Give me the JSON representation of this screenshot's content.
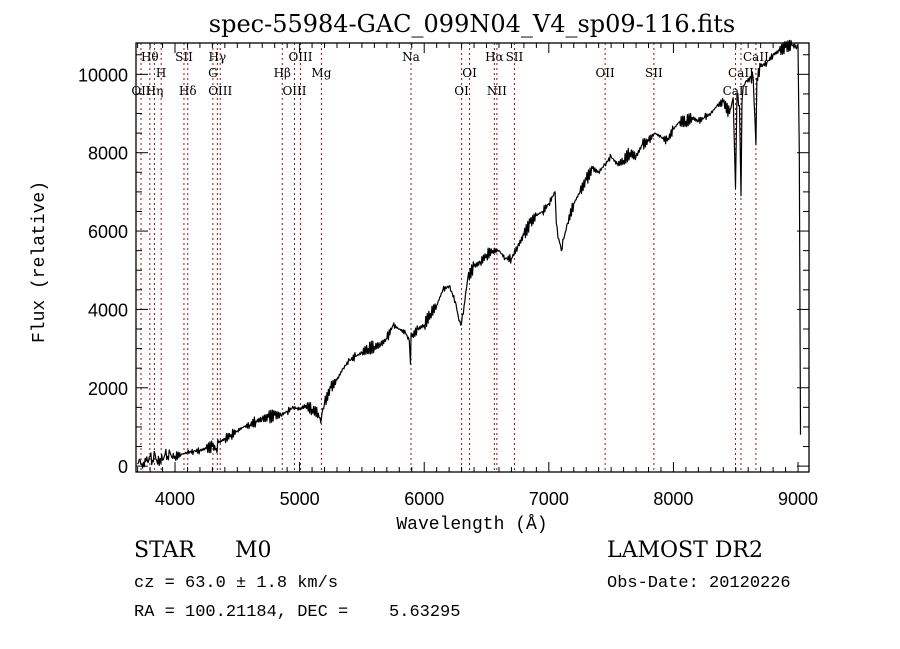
{
  "chart_data": {
    "type": "line",
    "title": "spec-55984-GAC_099N04_V4_sp09-116.fits",
    "xlabel": "Wavelength (Å)",
    "ylabel": "Flux (relative)",
    "xlim": [
      3687,
      9088
    ],
    "ylim": [
      -150,
      10800
    ],
    "xticks": [
      4000,
      5000,
      6000,
      7000,
      8000,
      9000
    ],
    "xtick_labels": [
      "4000",
      "5000",
      "6000",
      "7000",
      "8000",
      "9000"
    ],
    "yticks": [
      0,
      2000,
      4000,
      6000,
      8000,
      10000
    ],
    "ytick_labels": [
      "0",
      "2000",
      "4000",
      "6000",
      "8000",
      "10000"
    ],
    "grid": false,
    "line_color": "#000000",
    "marker_line_color": "#8b1a1a",
    "series": [
      {
        "name": "flux",
        "x": [
          3700,
          3720,
          3740,
          3760,
          3780,
          3800,
          3820,
          3840,
          3860,
          3880,
          3900,
          3920,
          3940,
          3960,
          3980,
          4000,
          4050,
          4100,
          4150,
          4200,
          4250,
          4300,
          4330,
          4350,
          4400,
          4450,
          4500,
          4550,
          4600,
          4650,
          4700,
          4750,
          4800,
          4850,
          4900,
          4950,
          5000,
          5050,
          5100,
          5150,
          5170,
          5180,
          5200,
          5250,
          5300,
          5350,
          5400,
          5450,
          5500,
          5550,
          5600,
          5650,
          5700,
          5750,
          5800,
          5850,
          5880,
          5890,
          5895,
          5900,
          5950,
          6000,
          6050,
          6100,
          6150,
          6200,
          6250,
          6280,
          6300,
          6320,
          6350,
          6400,
          6450,
          6500,
          6550,
          6600,
          6650,
          6700,
          6750,
          6800,
          6850,
          6900,
          6950,
          7000,
          7050,
          7060,
          7080,
          7100,
          7120,
          7150,
          7200,
          7250,
          7300,
          7350,
          7400,
          7450,
          7500,
          7550,
          7600,
          7650,
          7700,
          7750,
          7800,
          7850,
          7900,
          7950,
          8000,
          8050,
          8100,
          8150,
          8200,
          8250,
          8300,
          8350,
          8400,
          8450,
          8480,
          8498,
          8510,
          8530,
          8542,
          8550,
          8560,
          8600,
          8640,
          8662,
          8670,
          8700,
          8750,
          8800,
          8850,
          8900,
          8950,
          8980,
          9000,
          9010,
          9020
        ],
        "y": [
          50,
          150,
          -50,
          200,
          100,
          250,
          150,
          300,
          50,
          200,
          150,
          300,
          250,
          350,
          200,
          250,
          300,
          350,
          380,
          400,
          450,
          500,
          450,
          600,
          700,
          800,
          900,
          1000,
          1050,
          1150,
          1200,
          1250,
          1300,
          1300,
          1400,
          1500,
          1450,
          1550,
          1450,
          1350,
          1100,
          1350,
          1600,
          2000,
          2200,
          2500,
          2700,
          2800,
          2900,
          3000,
          3050,
          3100,
          3250,
          3600,
          3500,
          3400,
          3200,
          2600,
          3400,
          3300,
          3500,
          3600,
          3900,
          4100,
          4500,
          4600,
          4200,
          3700,
          3650,
          4100,
          4800,
          5100,
          5200,
          5400,
          5500,
          5500,
          5300,
          5300,
          5600,
          5900,
          6200,
          6400,
          6500,
          6700,
          7000,
          6200,
          5800,
          5500,
          5800,
          6200,
          6700,
          7000,
          7300,
          7600,
          7500,
          7700,
          7900,
          7700,
          7800,
          8000,
          7900,
          8200,
          8300,
          8500,
          8400,
          8300,
          8600,
          8800,
          8800,
          8900,
          8800,
          8900,
          9000,
          9200,
          9300,
          9000,
          9400,
          7100,
          9500,
          9200,
          6900,
          9300,
          9700,
          9900,
          9900,
          8200,
          9900,
          10200,
          10300,
          10500,
          10600,
          10700,
          10750,
          10700,
          10700,
          8000,
          800
        ]
      }
    ],
    "line_markers": [
      {
        "label": "Hθ",
        "wavelength": 3798,
        "row": 1
      },
      {
        "label": "Hη",
        "wavelength": 3835,
        "row": 3
      },
      {
        "label": "OII",
        "wavelength": 3727,
        "row": 3
      },
      {
        "label": "H",
        "wavelength": 3889,
        "row": 2
      },
      {
        "label": "SII",
        "wavelength": 4072,
        "row": 1
      },
      {
        "label": "Hδ",
        "wavelength": 4102,
        "row": 3
      },
      {
        "label": "Hγ",
        "wavelength": 4340,
        "row": 1
      },
      {
        "label": "G",
        "wavelength": 4304,
        "row": 2
      },
      {
        "label": "OIII",
        "wavelength": 4363,
        "row": 3
      },
      {
        "label": "Hβ",
        "wavelength": 4861,
        "row": 2
      },
      {
        "label": "OIII",
        "wavelength": 5007,
        "row": 1
      },
      {
        "label": "OIII",
        "wavelength": 4959,
        "row": 3
      },
      {
        "label": "Mg",
        "wavelength": 5175,
        "row": 2
      },
      {
        "label": "Na",
        "wavelength": 5894,
        "row": 1
      },
      {
        "label": "OI",
        "wavelength": 6364,
        "row": 2
      },
      {
        "label": "OI",
        "wavelength": 6300,
        "row": 3
      },
      {
        "label": "Hα",
        "wavelength": 6563,
        "row": 1
      },
      {
        "label": "SII",
        "wavelength": 6724,
        "row": 1
      },
      {
        "label": "NII",
        "wavelength": 6583,
        "row": 3
      },
      {
        "label": "OII",
        "wavelength": 7452,
        "row": 2
      },
      {
        "label": "SII",
        "wavelength": 7843,
        "row": 2
      },
      {
        "label": "CaII",
        "wavelength": 8662,
        "row": 1
      },
      {
        "label": "CaII",
        "wavelength": 8542,
        "row": 2
      },
      {
        "label": "CaII",
        "wavelength": 8498,
        "row": 3
      }
    ]
  },
  "info": {
    "object_class": "STAR",
    "subclass": "M0",
    "redshift_line": "cz = 63.0 ± 1.8 km/s",
    "coords_line": "RA = 100.21184, DEC =    5.63295",
    "survey": "LAMOST DR2",
    "obs_date_line": "Obs-Date: 20120226"
  }
}
